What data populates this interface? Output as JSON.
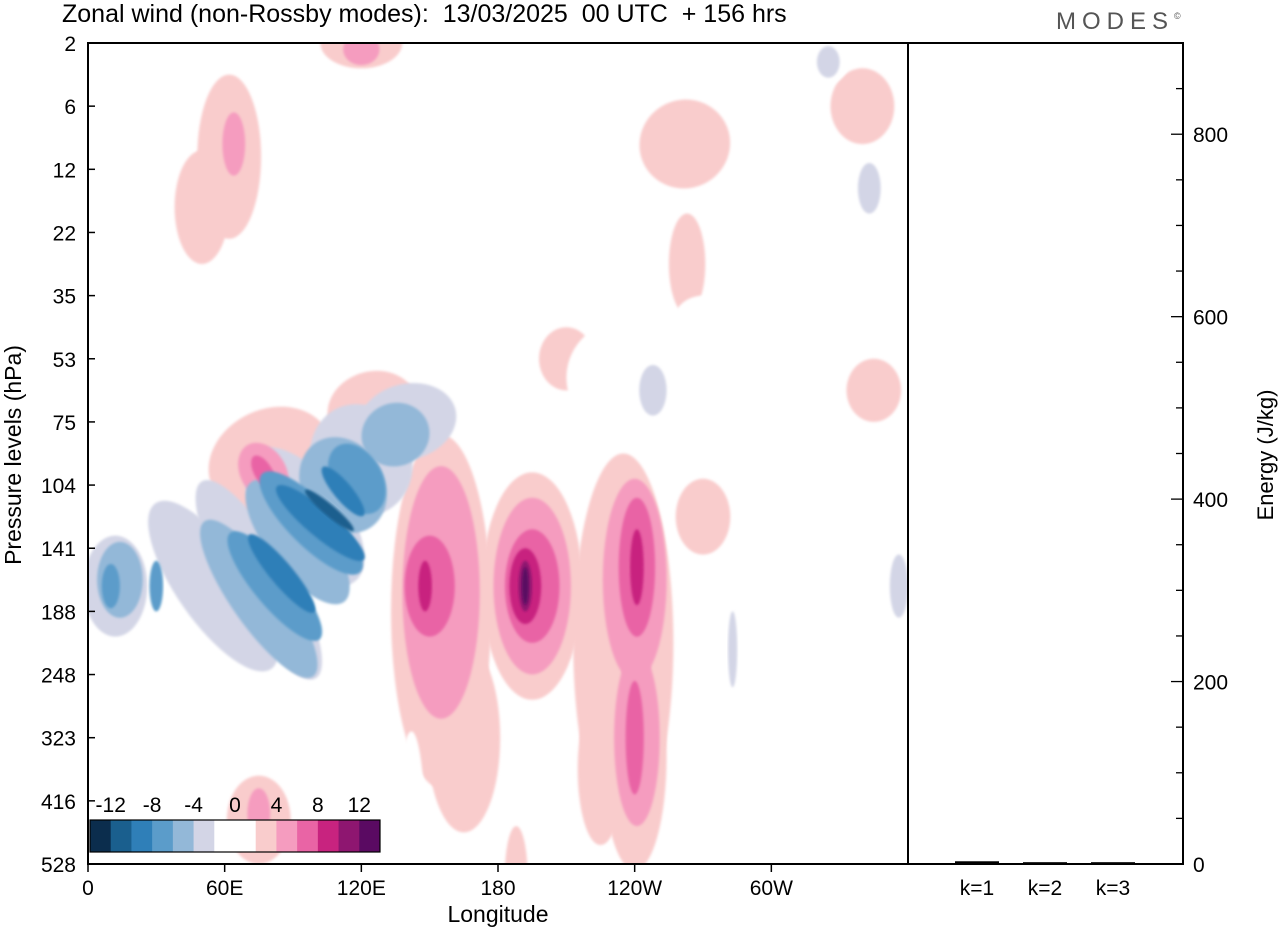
{
  "header": {
    "title": "Zonal wind (non-Rossby modes):  13/03/2025  00 UTC  + 156 hrs",
    "brand": "MODES",
    "brand_mark": "©"
  },
  "chart_data": [
    {
      "type": "heatmap",
      "xlabel": "Longitude",
      "ylabel": "Pressure levels (hPa)",
      "x_ticks": [
        "0",
        "60E",
        "120E",
        "180",
        "120W",
        "60W"
      ],
      "x_tick_degrees": [
        0,
        60,
        120,
        180,
        240,
        300
      ],
      "x_range_degrees": [
        0,
        360
      ],
      "y_ticks": [
        "2",
        "6",
        "12",
        "22",
        "35",
        "53",
        "75",
        "104",
        "141",
        "188",
        "248",
        "323",
        "416",
        "528"
      ],
      "y_direction": "pressure increasing downward",
      "colorbar": {
        "labels": [
          "-12",
          "-8",
          "-4",
          "0",
          "4",
          "8",
          "12"
        ],
        "label_values": [
          -12,
          -8,
          -4,
          0,
          4,
          8,
          12
        ],
        "levels": [
          -14,
          -12,
          -10,
          -8,
          -6,
          -4,
          -2,
          0,
          2,
          4,
          6,
          8,
          10,
          12,
          14
        ],
        "colors": [
          "#0b2d4d",
          "#1a5f8e",
          "#2f7fb8",
          "#5b9cca",
          "#93b8d8",
          "#d3d5e6",
          "#ffffff",
          "#ffffff",
          "#f9cccc",
          "#f59cbf",
          "#e964a5",
          "#c8237f",
          "#8e1670",
          "#5a0a62"
        ]
      },
      "features": [
        {
          "name": "easterly jet core",
          "lon": 100,
          "level": "104–141",
          "value": -14
        },
        {
          "name": "easterly band",
          "lon": 40,
          "level": "141",
          "value": -10
        },
        {
          "name": "westerly maximum",
          "lon": 192,
          "level": "141",
          "value": 12
        },
        {
          "name": "westerly maximum",
          "lon": 148,
          "level": "141",
          "value": 8
        },
        {
          "name": "westerly maximum",
          "lon": 241,
          "level": "141",
          "value": 8
        },
        {
          "name": "westerly maximum",
          "lon": 240,
          "level": "248–323",
          "value": 6
        },
        {
          "name": "westerly maximum",
          "lon": 77,
          "level": "75",
          "value": 8
        }
      ],
      "grid": false
    },
    {
      "type": "bar",
      "categories": [
        "k=1",
        "k=2",
        "k=3"
      ],
      "values": [
        3,
        2,
        2
      ],
      "ylabel": "Energy (J/kg)",
      "y_ticks": [
        "0",
        "200",
        "400",
        "600",
        "800"
      ],
      "y_tick_values": [
        0,
        200,
        400,
        600,
        800
      ],
      "ylim": [
        0,
        900
      ],
      "grid": false
    }
  ]
}
